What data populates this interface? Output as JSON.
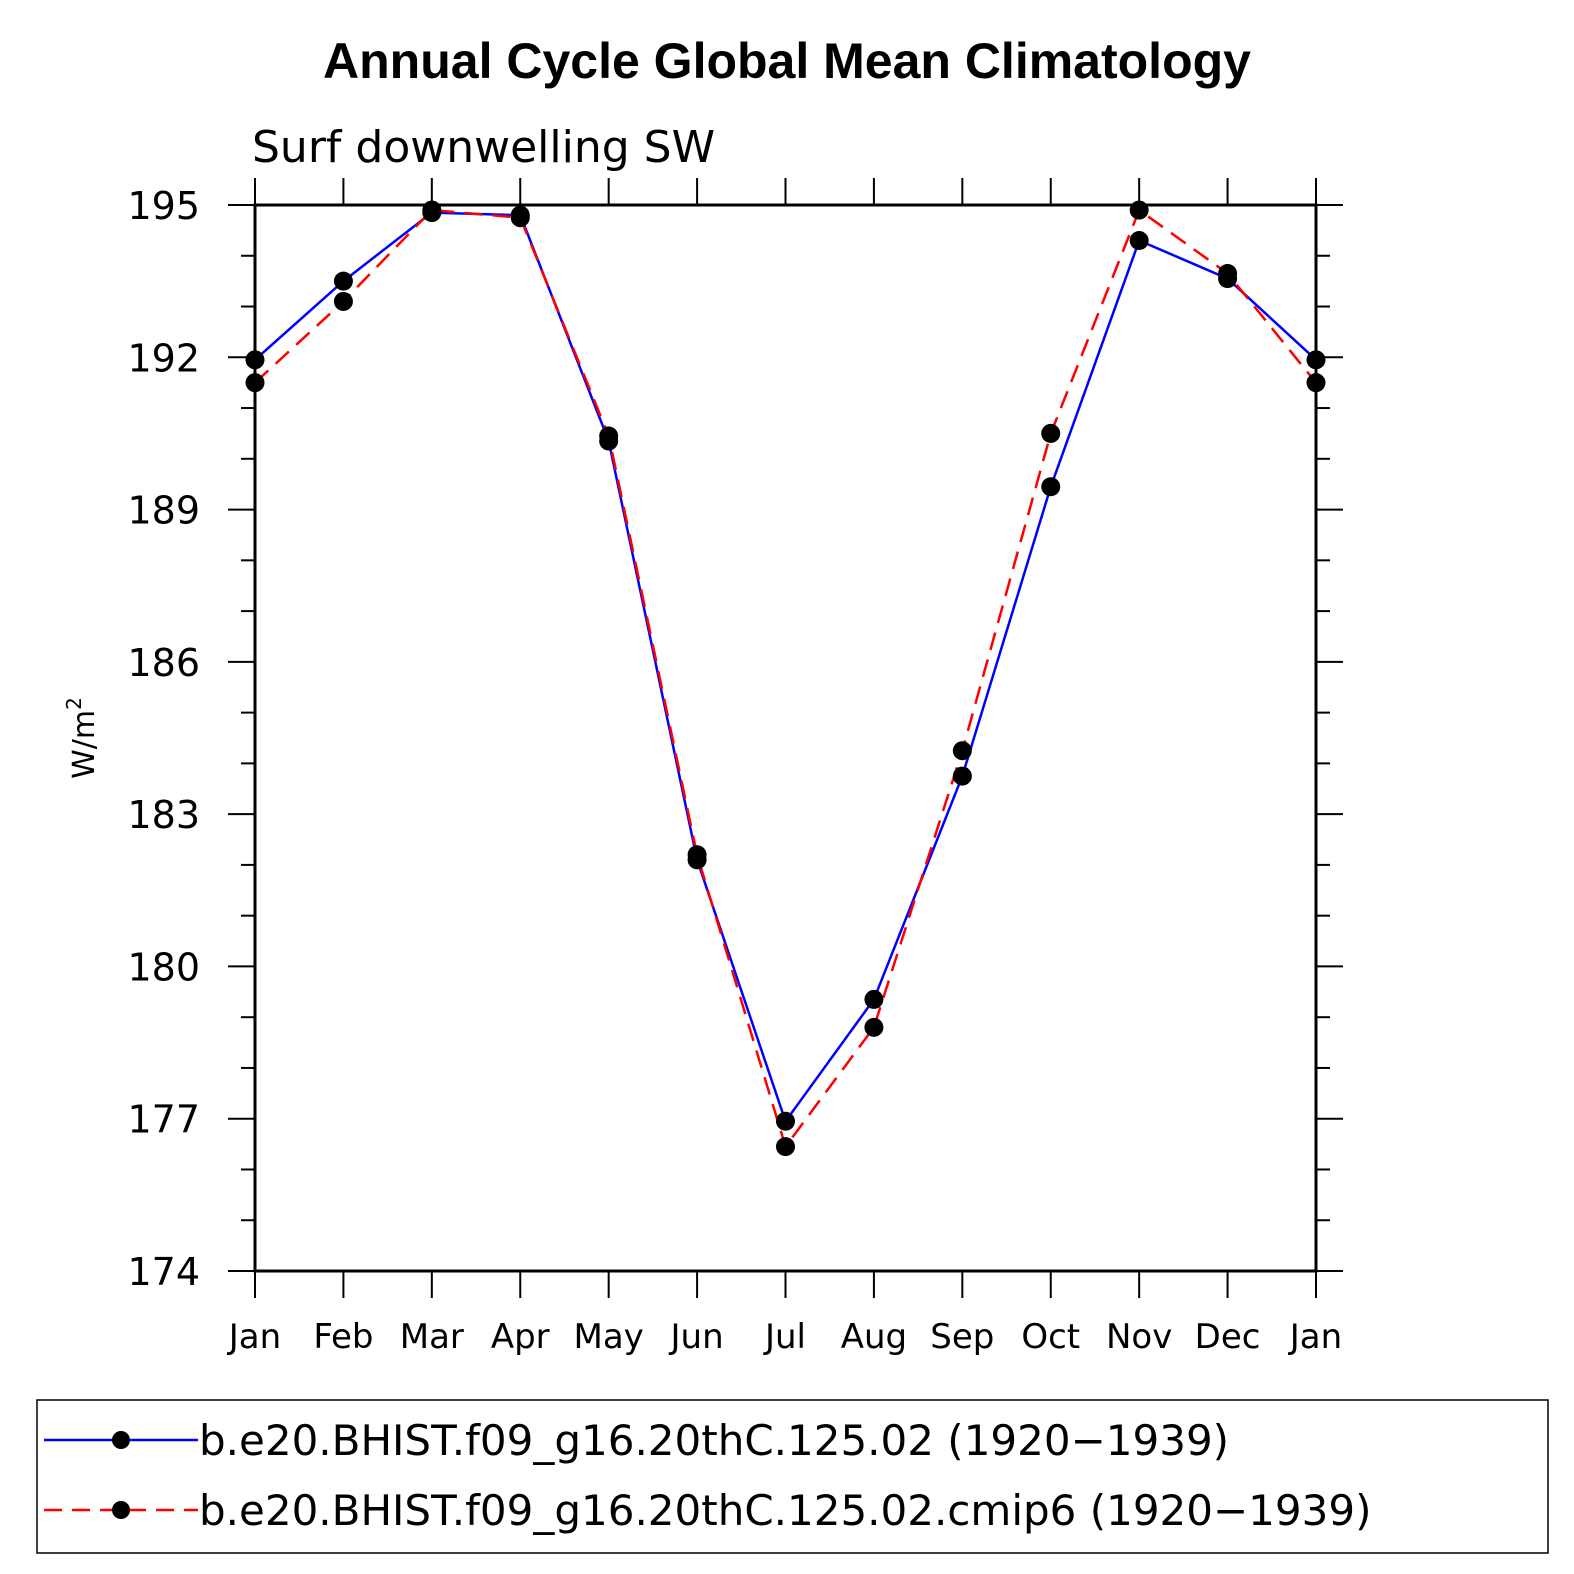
{
  "chart_data": {
    "type": "line",
    "title": "Annual Cycle Global Mean Climatology",
    "subtitle": "Surf downwelling SW",
    "ylabel": "W/m",
    "ylabel_superscript": "2",
    "ylim": [
      174,
      195
    ],
    "yticks": [
      174,
      177,
      180,
      183,
      186,
      189,
      192,
      195
    ],
    "categories": [
      "Jan",
      "Feb",
      "Mar",
      "Apr",
      "May",
      "Jun",
      "Jul",
      "Aug",
      "Sep",
      "Oct",
      "Nov",
      "Dec",
      "Jan"
    ],
    "series": [
      {
        "name": "b.e20.BHIST.f09_g16.20thC.125.02 (1920−1939)",
        "color": "#0000ff",
        "style": "solid",
        "values": [
          191.95,
          193.5,
          194.85,
          194.8,
          190.35,
          182.1,
          176.95,
          179.35,
          183.75,
          189.45,
          194.3,
          193.55,
          191.95
        ]
      },
      {
        "name": "b.e20.BHIST.f09_g16.20thC.125.02.cmip6 (1920−1939)",
        "color": "#ff0000",
        "style": "dashed",
        "values": [
          191.5,
          193.1,
          194.9,
          194.75,
          190.45,
          182.2,
          176.45,
          178.8,
          184.25,
          190.5,
          194.9,
          193.65,
          191.5
        ]
      }
    ]
  }
}
